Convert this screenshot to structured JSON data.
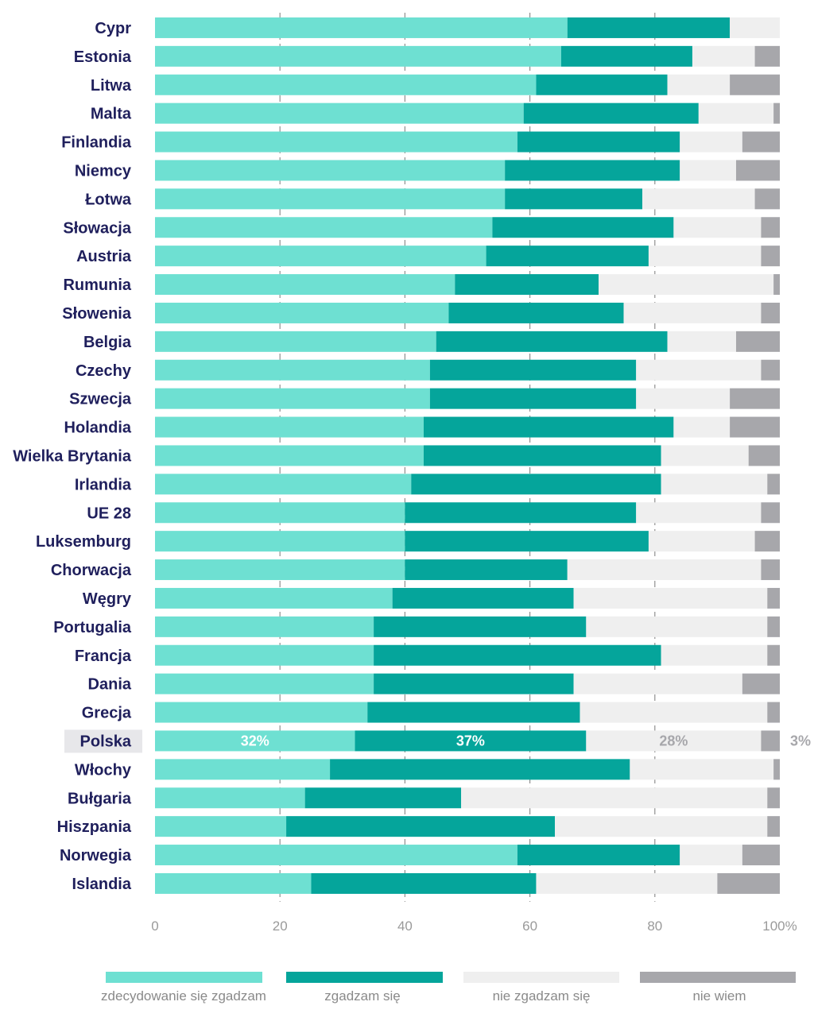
{
  "chart_data": {
    "type": "bar",
    "orientation": "horizontal",
    "stacked": true,
    "unit": "%",
    "xlim": [
      0,
      100
    ],
    "x_ticks": [
      "0",
      "20",
      "40",
      "60",
      "80",
      "100%"
    ],
    "gridlines": [
      20,
      40,
      60,
      80
    ],
    "highlighted_category": "Polska",
    "colors": {
      "text": "#1f1f5c",
      "highlight_bg": "#e7e7ea",
      "grid": "#8f8f8f",
      "axis_text": "#9a9a9a",
      "legend_text": "#8a8a8a"
    },
    "categories": [
      "Cypr",
      "Estonia",
      "Litwa",
      "Malta",
      "Finlandia",
      "Niemcy",
      "Łotwa",
      "Słowacja",
      "Austria",
      "Rumunia",
      "Słowenia",
      "Belgia",
      "Czechy",
      "Szwecja",
      "Holandia",
      "Wielka Brytania",
      "Irlandia",
      "UE 28",
      "Luksemburg",
      "Chorwacja",
      "Węgry",
      "Portugalia",
      "Francja",
      "Dania",
      "Grecja",
      "Polska",
      "Włochy",
      "Bułgaria",
      "Hiszpania",
      "Norwegia",
      "Islandia"
    ],
    "series": [
      {
        "name": "zdecydowanie się zgadzam",
        "color": "#6ee0d2",
        "values": [
          66,
          65,
          61,
          59,
          58,
          56,
          56,
          54,
          53,
          48,
          47,
          45,
          44,
          44,
          43,
          43,
          41,
          40,
          40,
          40,
          38,
          35,
          35,
          35,
          34,
          32,
          28,
          24,
          21,
          58,
          25
        ]
      },
      {
        "name": "zgadzam się",
        "color": "#05a59b",
        "values": [
          26,
          21,
          21,
          28,
          26,
          28,
          22,
          29,
          26,
          23,
          28,
          37,
          33,
          33,
          40,
          38,
          40,
          37,
          39,
          26,
          29,
          34,
          46,
          32,
          34,
          37,
          48,
          25,
          43,
          26,
          36
        ]
      },
      {
        "name": "nie zgadzam się",
        "color": "#efefef",
        "values": [
          8,
          10,
          10,
          12,
          10,
          9,
          18,
          14,
          18,
          28,
          22,
          11,
          20,
          15,
          9,
          14,
          17,
          20,
          17,
          31,
          31,
          29,
          17,
          27,
          30,
          28,
          23,
          49,
          34,
          10,
          29
        ]
      },
      {
        "name": "nie wiem",
        "color": "#a7a7ab",
        "values": [
          0,
          4,
          8,
          1,
          6,
          7,
          4,
          3,
          3,
          1,
          3,
          7,
          3,
          8,
          8,
          5,
          2,
          3,
          4,
          3,
          2,
          2,
          2,
          6,
          2,
          3,
          1,
          2,
          2,
          6,
          10
        ]
      }
    ],
    "value_labels": [
      {
        "category": "Polska",
        "series": "zdecydowanie się zgadzam",
        "text": "32%",
        "color": "#ffffff"
      },
      {
        "category": "Polska",
        "series": "zgadzam się",
        "text": "37%",
        "color": "#ffffff"
      },
      {
        "category": "Polska",
        "series": "nie zgadzam się",
        "text": "28%",
        "color": "#a7a7ab"
      },
      {
        "category": "Polska",
        "series": "nie wiem",
        "text": "3%",
        "color": "#a7a7ab"
      }
    ]
  }
}
